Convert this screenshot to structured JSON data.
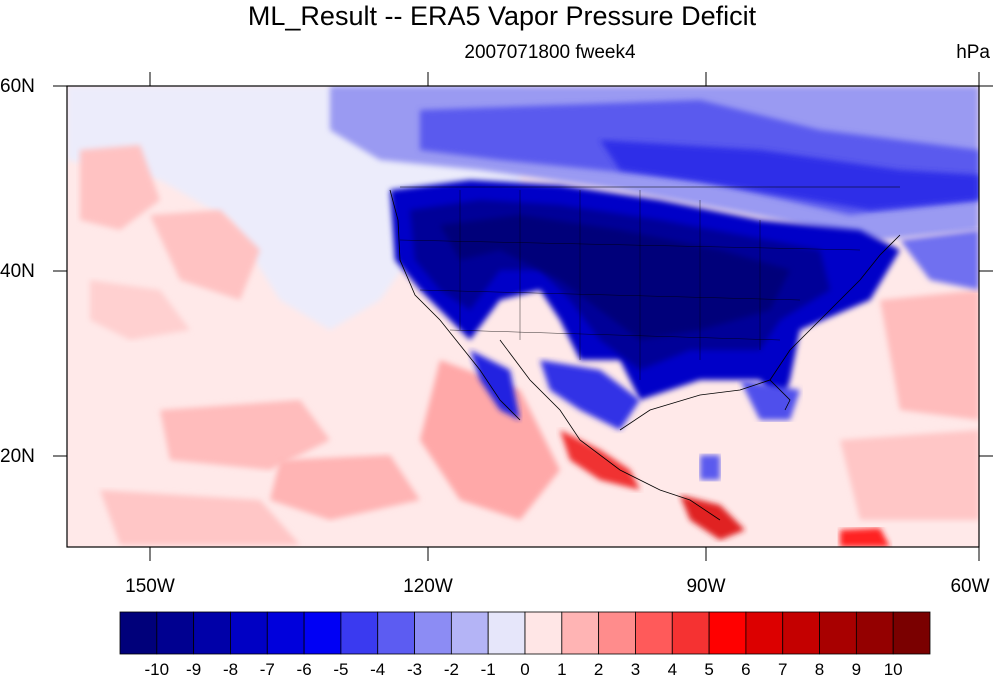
{
  "title": "ML_Result -- ERA5 Vapor Pressure Deficit",
  "subtitle": "2007071800 fweek4",
  "units": "hPa",
  "map": {
    "lat_labels": [
      "60N",
      "40N",
      "20N"
    ],
    "lon_labels": [
      "150W",
      "120W",
      "90W",
      "60W"
    ],
    "lat_range": [
      10,
      60
    ],
    "lon_range": [
      -160,
      -60
    ]
  },
  "colorbar": {
    "labels": [
      "-10",
      "-9",
      "-8",
      "-7",
      "-6",
      "-5",
      "-4",
      "-3",
      "-2",
      "-1",
      "0",
      "1",
      "2",
      "3",
      "4",
      "5",
      "6",
      "7",
      "8",
      "9",
      "10"
    ],
    "colors": [
      "#00007a",
      "#000090",
      "#0000a8",
      "#0000c4",
      "#0000dc",
      "#0000f5",
      "#3a3af0",
      "#5c5cf2",
      "#8c8cf4",
      "#b4b4f6",
      "#e6e6fa",
      "#ffe6e6",
      "#ffb4b4",
      "#ff8c8c",
      "#ff5a5a",
      "#f53232",
      "#ff0000",
      "#dc0000",
      "#c40000",
      "#a80000",
      "#940000",
      "#7a0000"
    ]
  }
}
